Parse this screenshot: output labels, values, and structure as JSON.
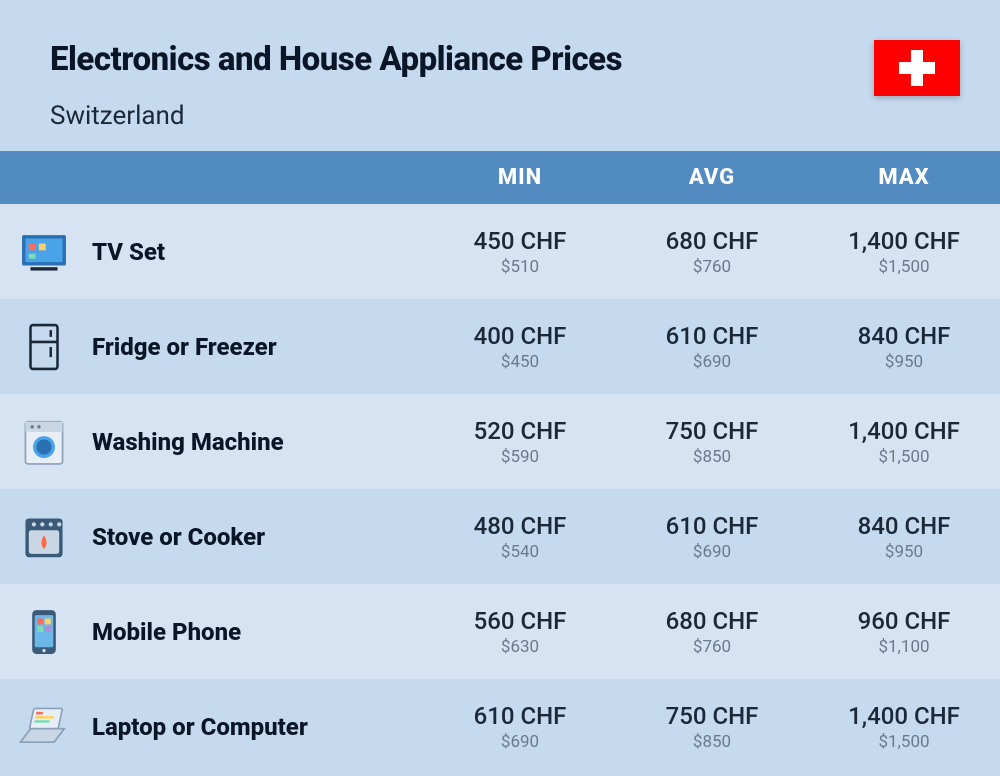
{
  "header": {
    "title": "Electronics and House Appliance Prices",
    "country": "Switzerland",
    "flag_bg": "#ff0000",
    "flag_cross": "#ffffff"
  },
  "table": {
    "columns": [
      "MIN",
      "AVG",
      "MAX"
    ],
    "header_bg": "#518bbf",
    "header_fg": "#ffffff",
    "row_odd_bg": "#d5e3f3",
    "row_even_bg": "#c6daef",
    "primary_color": "#1a2838",
    "secondary_color": "#6b7a8c",
    "rows": [
      {
        "icon": "tv-icon",
        "name": "TV Set",
        "min": {
          "chf": "450 CHF",
          "usd": "$510"
        },
        "avg": {
          "chf": "680 CHF",
          "usd": "$760"
        },
        "max": {
          "chf": "1,400 CHF",
          "usd": "$1,500"
        }
      },
      {
        "icon": "fridge-icon",
        "name": "Fridge or Freezer",
        "min": {
          "chf": "400 CHF",
          "usd": "$450"
        },
        "avg": {
          "chf": "610 CHF",
          "usd": "$690"
        },
        "max": {
          "chf": "840 CHF",
          "usd": "$950"
        }
      },
      {
        "icon": "washer-icon",
        "name": "Washing Machine",
        "min": {
          "chf": "520 CHF",
          "usd": "$590"
        },
        "avg": {
          "chf": "750 CHF",
          "usd": "$850"
        },
        "max": {
          "chf": "1,400 CHF",
          "usd": "$1,500"
        }
      },
      {
        "icon": "stove-icon",
        "name": "Stove or Cooker",
        "min": {
          "chf": "480 CHF",
          "usd": "$540"
        },
        "avg": {
          "chf": "610 CHF",
          "usd": "$690"
        },
        "max": {
          "chf": "840 CHF",
          "usd": "$950"
        }
      },
      {
        "icon": "phone-icon",
        "name": "Mobile Phone",
        "min": {
          "chf": "560 CHF",
          "usd": "$630"
        },
        "avg": {
          "chf": "680 CHF",
          "usd": "$760"
        },
        "max": {
          "chf": "960 CHF",
          "usd": "$1,100"
        }
      },
      {
        "icon": "laptop-icon",
        "name": "Laptop or Computer",
        "min": {
          "chf": "610 CHF",
          "usd": "$690"
        },
        "avg": {
          "chf": "750 CHF",
          "usd": "$850"
        },
        "max": {
          "chf": "1,400 CHF",
          "usd": "$1,500"
        }
      }
    ]
  }
}
